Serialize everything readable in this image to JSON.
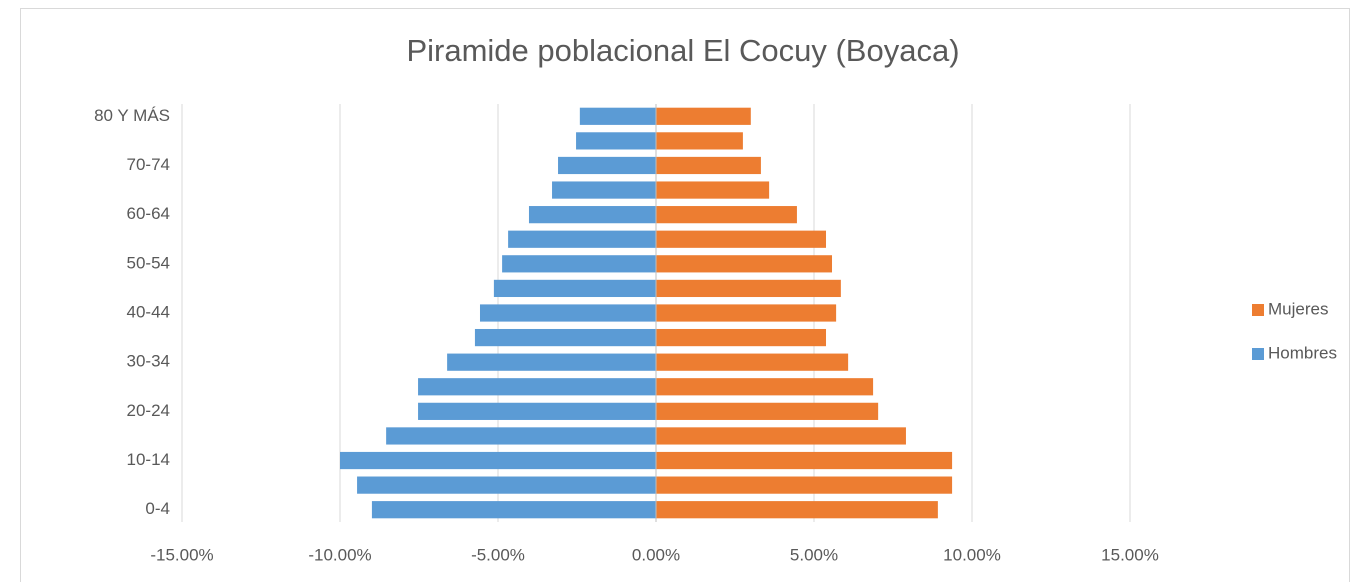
{
  "chart_data": {
    "type": "bar",
    "orientation": "horizontal",
    "title": "Piramide poblacional El Cocuy (Boyaca)",
    "categories": [
      "0-4",
      null,
      "10-14",
      null,
      "20-24",
      null,
      "30-34",
      null,
      "40-44",
      null,
      "50-54",
      null,
      "60-64",
      null,
      "70-74",
      null,
      "80 Y MÁS"
    ],
    "series": [
      {
        "name": "Hombres",
        "color": "#5b9bd5",
        "values": [
          -8.99,
          -9.46,
          -10.0,
          -8.54,
          -7.53,
          -7.53,
          -6.61,
          -5.73,
          -5.57,
          -5.13,
          -4.87,
          -4.68,
          -4.02,
          -3.29,
          -3.1,
          -2.53,
          -2.41
        ]
      },
      {
        "name": "Mujeres",
        "color": "#ed7d31",
        "values": [
          8.92,
          9.37,
          9.37,
          7.91,
          7.03,
          6.87,
          6.08,
          5.38,
          5.7,
          5.85,
          5.57,
          5.38,
          4.46,
          3.58,
          3.32,
          2.75,
          3.0
        ]
      }
    ],
    "xlim": [
      -15,
      15
    ],
    "xticks": [
      {
        "value": -15,
        "label": "-15.00%"
      },
      {
        "value": -10,
        "label": "-10.00%"
      },
      {
        "value": -5,
        "label": "-5.00%"
      },
      {
        "value": 0,
        "label": "0.00%"
      },
      {
        "value": 5,
        "label": "5.00%"
      },
      {
        "value": 10,
        "label": "10.00%"
      },
      {
        "value": 15,
        "label": "15.00%"
      }
    ],
    "grid": true,
    "legend": "right"
  }
}
